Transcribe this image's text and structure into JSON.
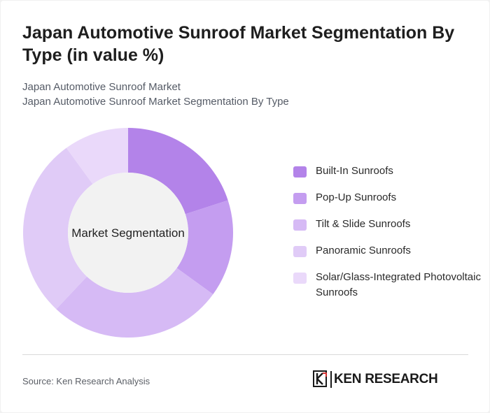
{
  "header": {
    "title": "Japan Automotive Sunroof Market Segmentation By Type (in value %)",
    "subtitle_line1": "Japan Automotive Sunroof Market",
    "subtitle_line2": "Japan Automotive Sunroof Market Segmentation By Type"
  },
  "chart_data": {
    "type": "pie",
    "center_label": "Market Segmentation",
    "categories": [
      "Built-In Sunroofs",
      "Pop-Up Sunroofs",
      "Tilt & Slide Sunroofs",
      "Panoramic Sunroofs",
      "Solar/Glass-Integrated Photovoltaic Sunroofs"
    ],
    "values": [
      20,
      15,
      27,
      28,
      10
    ],
    "colors": [
      "#b383e9",
      "#c49df0",
      "#d6baf5",
      "#e0cbf7",
      "#ead9fa"
    ],
    "legend_position": "right"
  },
  "footer": {
    "source": "Source: Ken Research Analysis",
    "brand": "KEN RESEARCH",
    "brand_icon": "ken-research-logo-icon"
  }
}
